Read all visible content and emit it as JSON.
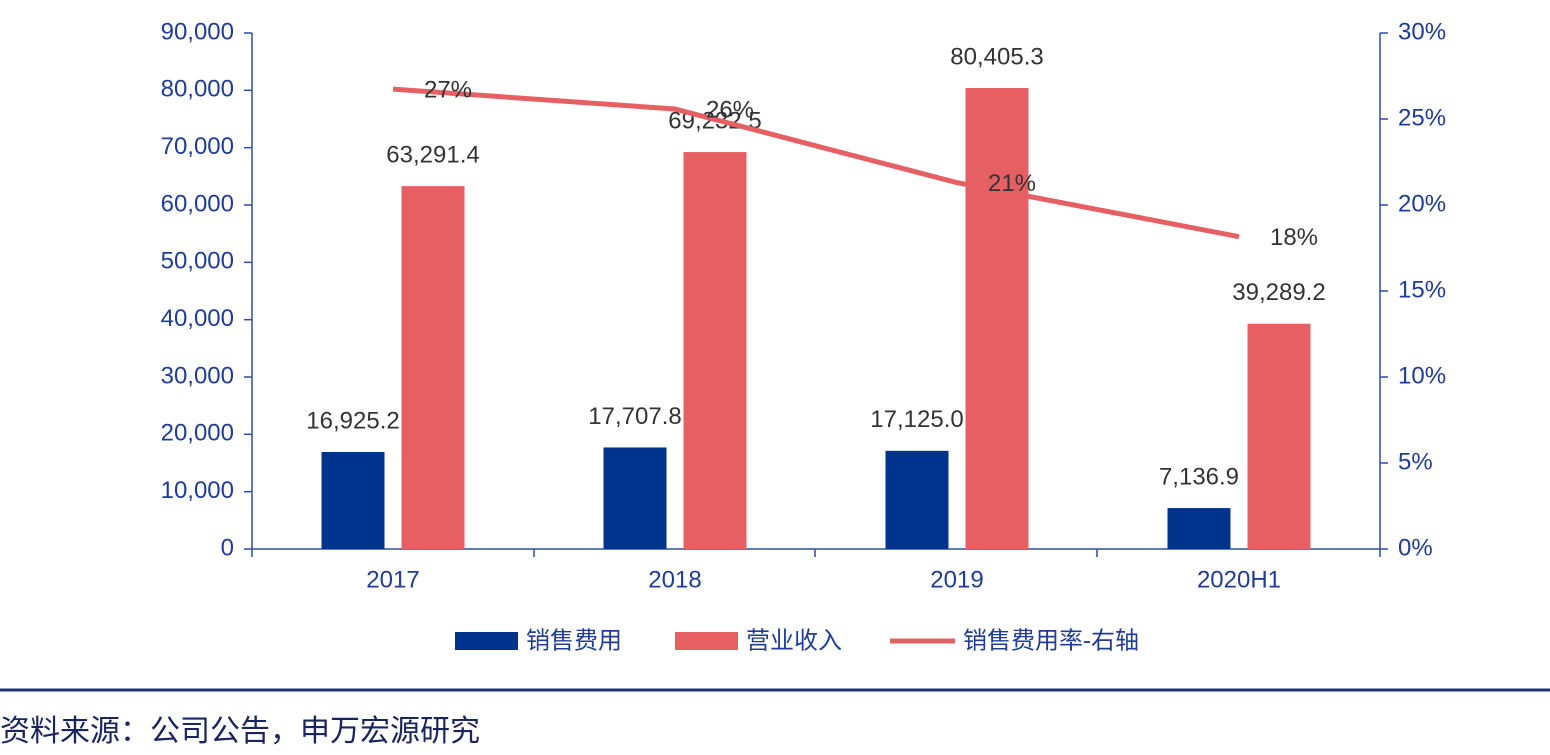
{
  "chart_data": {
    "type": "bar",
    "categories": [
      "2017",
      "2018",
      "2019",
      "2020H1"
    ],
    "series": [
      {
        "name": "销售费用",
        "type": "bar",
        "color": "#00338d",
        "values": [
          16925.2,
          17707.8,
          17125.0,
          7136.9
        ],
        "value_labels": [
          "16,925.2",
          "17,707.8",
          "17,125.0",
          "7,136.9"
        ]
      },
      {
        "name": "营业收入",
        "type": "bar",
        "color": "#e66063",
        "values": [
          63291.4,
          69232.5,
          80405.3,
          39289.2
        ],
        "value_labels": [
          "63,291.4",
          "69,232.5",
          "80,405.3",
          "39,289.2"
        ]
      },
      {
        "name": "销售费用率-右轴",
        "type": "line",
        "axis": "y2",
        "color": "#e66063",
        "values": [
          26.74,
          25.58,
          21.3,
          18.16
        ],
        "value_labels": [
          "27%",
          "26%",
          "21%",
          "18%"
        ]
      }
    ],
    "ylim": [
      0,
      90000
    ],
    "yticks": [
      0,
      {
        "value": 10000,
        "label": "10,000"
      },
      {
        "value": 20000,
        "label": "20,000"
      },
      {
        "value": 30000,
        "label": "30,000"
      },
      {
        "value": 40000,
        "label": "40,000"
      },
      {
        "value": 50000,
        "label": "50,000"
      },
      {
        "value": 60000,
        "label": "60,000"
      },
      {
        "value": 70000,
        "label": "70,000"
      },
      {
        "value": 80000,
        "label": "80,000"
      },
      {
        "value": 90000,
        "label": "90,000"
      }
    ],
    "y2lim": [
      0,
      30
    ],
    "y2ticks": [
      {
        "value": 0,
        "label": "0%"
      },
      {
        "value": 5,
        "label": "5%"
      },
      {
        "value": 10,
        "label": "10%"
      },
      {
        "value": 15,
        "label": "15%"
      },
      {
        "value": 20,
        "label": "20%"
      },
      {
        "value": 25,
        "label": "25%"
      },
      {
        "value": 30,
        "label": "30%"
      }
    ],
    "legend": "bottom"
  },
  "footer": {
    "source": "资料来源：公司公告，申万宏源研究"
  }
}
